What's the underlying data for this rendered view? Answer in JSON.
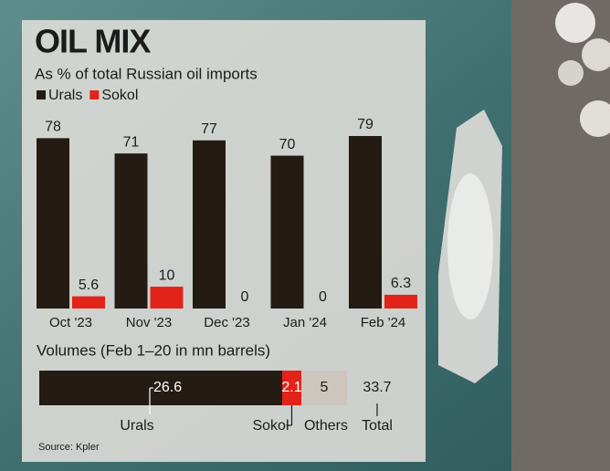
{
  "chart_data": [
    {
      "type": "bar",
      "title": "OIL MIX",
      "subtitle": "As % of total Russian oil imports",
      "categories": [
        "Oct '23",
        "Nov '23",
        "Dec '23",
        "Jan '24",
        "Feb '24"
      ],
      "series": [
        {
          "name": "Urals",
          "color": "#241b15",
          "values": [
            78,
            71,
            77,
            70,
            79
          ]
        },
        {
          "name": "Sokol",
          "color": "#e2231a",
          "values": [
            5.6,
            10,
            0,
            0,
            6.3
          ]
        }
      ]
    },
    {
      "type": "stacked-hbar",
      "title": "Volumes (Feb 1–20 in mn barrels)",
      "categories": [
        "Urals",
        "Sokol",
        "Others"
      ],
      "values": [
        26.6,
        2.1,
        5
      ],
      "colors": [
        "#241b15",
        "#e2231a",
        "#cdc6bf"
      ],
      "total_label": "Total",
      "total": 33.7
    }
  ],
  "source": "Source: Kpler"
}
